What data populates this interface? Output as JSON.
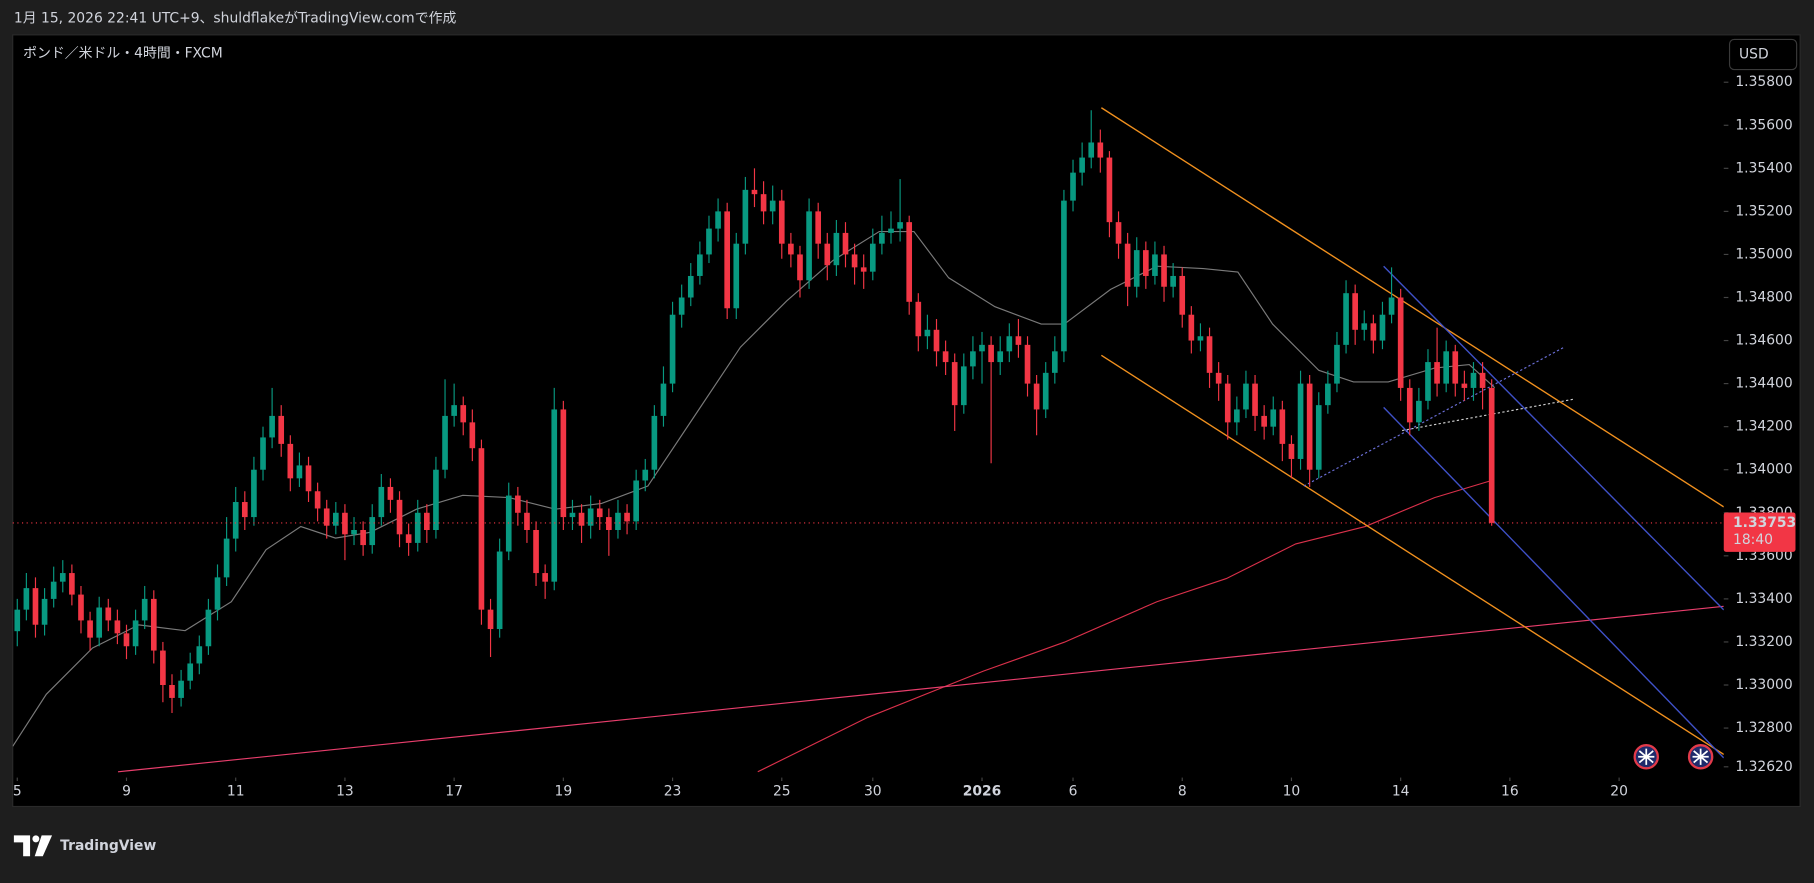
{
  "header": "1月 15, 2026 22:41 UTC+9、shuldflakeがTradingView.comで作成",
  "brand": "TradingView",
  "chart_data": {
    "type": "candlestick",
    "title": "ポンド／米ドル・4時間・FXCM",
    "currency": "USD",
    "up_color": "#089981",
    "down_color": "#f23645",
    "last_price": 1.33753,
    "countdown": "18:40",
    "xlim": [
      -0.5,
      187.5
    ],
    "xticks": [
      {
        "value": 0,
        "label": "5"
      },
      {
        "value": 12,
        "label": "9"
      },
      {
        "value": 24,
        "label": "11"
      },
      {
        "value": 36,
        "label": "13"
      },
      {
        "value": 48,
        "label": "17"
      },
      {
        "value": 60,
        "label": "19"
      },
      {
        "value": 72,
        "label": "23"
      },
      {
        "value": 84,
        "label": "25"
      },
      {
        "value": 94,
        "label": "30"
      },
      {
        "value": 106,
        "label": "2026"
      },
      {
        "value": 116,
        "label": "6"
      },
      {
        "value": 128,
        "label": "8"
      },
      {
        "value": 140,
        "label": "10"
      },
      {
        "value": 152,
        "label": "14"
      },
      {
        "value": 164,
        "label": "16"
      },
      {
        "value": 176,
        "label": "20"
      }
    ],
    "ylim": [
      1.3257,
      1.3602
    ],
    "yticks": [
      {
        "value": 1.358,
        "label": "1.35800"
      },
      {
        "value": 1.356,
        "label": "1.35600"
      },
      {
        "value": 1.354,
        "label": "1.35400"
      },
      {
        "value": 1.352,
        "label": "1.35200"
      },
      {
        "value": 1.35,
        "label": "1.35000"
      },
      {
        "value": 1.348,
        "label": "1.34800"
      },
      {
        "value": 1.346,
        "label": "1.34600"
      },
      {
        "value": 1.344,
        "label": "1.34400"
      },
      {
        "value": 1.342,
        "label": "1.34200"
      },
      {
        "value": 1.34,
        "label": "1.34000"
      },
      {
        "value": 1.338,
        "label": "1.33800"
      },
      {
        "value": 1.336,
        "label": "1.33600"
      },
      {
        "value": 1.334,
        "label": "1.33400"
      },
      {
        "value": 1.332,
        "label": "1.33200"
      },
      {
        "value": 1.33,
        "label": "1.33000"
      },
      {
        "value": 1.328,
        "label": "1.32800"
      },
      {
        "value": 1.3262,
        "label": "1.32620"
      }
    ],
    "ohlc": [
      [
        1.3325,
        1.334,
        1.3318,
        1.3335
      ],
      [
        1.3335,
        1.3352,
        1.333,
        1.3345
      ],
      [
        1.3345,
        1.335,
        1.3322,
        1.3328
      ],
      [
        1.3328,
        1.3345,
        1.3323,
        1.334
      ],
      [
        1.334,
        1.3355,
        1.3336,
        1.3348
      ],
      [
        1.3348,
        1.3358,
        1.3343,
        1.3352
      ],
      [
        1.3352,
        1.3356,
        1.3337,
        1.3342
      ],
      [
        1.3342,
        1.3346,
        1.3324,
        1.333
      ],
      [
        1.333,
        1.3334,
        1.3316,
        1.3322
      ],
      [
        1.3322,
        1.3341,
        1.3318,
        1.3336
      ],
      [
        1.3336,
        1.334,
        1.3325,
        1.333
      ],
      [
        1.333,
        1.3335,
        1.3319,
        1.3324
      ],
      [
        1.3324,
        1.3328,
        1.3312,
        1.3318
      ],
      [
        1.3318,
        1.3335,
        1.3314,
        1.333
      ],
      [
        1.333,
        1.3346,
        1.3326,
        1.334
      ],
      [
        1.334,
        1.3344,
        1.331,
        1.3316
      ],
      [
        1.3316,
        1.332,
        1.3292,
        1.33
      ],
      [
        1.33,
        1.3305,
        1.3287,
        1.3294
      ],
      [
        1.3294,
        1.3307,
        1.329,
        1.3302
      ],
      [
        1.3302,
        1.3315,
        1.3298,
        1.331
      ],
      [
        1.331,
        1.3323,
        1.3305,
        1.3318
      ],
      [
        1.3318,
        1.334,
        1.3314,
        1.3335
      ],
      [
        1.3335,
        1.3356,
        1.333,
        1.335
      ],
      [
        1.335,
        1.3378,
        1.3346,
        1.3368
      ],
      [
        1.3368,
        1.3392,
        1.3362,
        1.3385
      ],
      [
        1.3385,
        1.339,
        1.3372,
        1.3378
      ],
      [
        1.3378,
        1.3406,
        1.3374,
        1.34
      ],
      [
        1.34,
        1.342,
        1.3395,
        1.3415
      ],
      [
        1.3415,
        1.3438,
        1.341,
        1.3425
      ],
      [
        1.3425,
        1.343,
        1.3406,
        1.3412
      ],
      [
        1.3412,
        1.3416,
        1.339,
        1.3396
      ],
      [
        1.3396,
        1.3408,
        1.3392,
        1.3402
      ],
      [
        1.3402,
        1.3406,
        1.3385,
        1.339
      ],
      [
        1.339,
        1.3394,
        1.3376,
        1.3382
      ],
      [
        1.3382,
        1.3386,
        1.3368,
        1.3374
      ],
      [
        1.3374,
        1.3385,
        1.337,
        1.338
      ],
      [
        1.338,
        1.3384,
        1.3358,
        1.337
      ],
      [
        1.337,
        1.3378,
        1.3365,
        1.3372
      ],
      [
        1.3372,
        1.3376,
        1.336,
        1.3365
      ],
      [
        1.3365,
        1.3384,
        1.3361,
        1.3378
      ],
      [
        1.3378,
        1.3398,
        1.3374,
        1.3392
      ],
      [
        1.3392,
        1.3396,
        1.338,
        1.3386
      ],
      [
        1.3386,
        1.339,
        1.3364,
        1.337
      ],
      [
        1.337,
        1.3375,
        1.336,
        1.3366
      ],
      [
        1.3366,
        1.3386,
        1.3362,
        1.338
      ],
      [
        1.338,
        1.3384,
        1.3366,
        1.3372
      ],
      [
        1.3372,
        1.3406,
        1.3368,
        1.34
      ],
      [
        1.34,
        1.3442,
        1.3396,
        1.3425
      ],
      [
        1.3425,
        1.344,
        1.342,
        1.343
      ],
      [
        1.343,
        1.3434,
        1.3416,
        1.3422
      ],
      [
        1.3422,
        1.3428,
        1.3404,
        1.341
      ],
      [
        1.341,
        1.3414,
        1.3328,
        1.3335
      ],
      [
        1.3335,
        1.334,
        1.3313,
        1.3326
      ],
      [
        1.3326,
        1.3368,
        1.3322,
        1.3362
      ],
      [
        1.3362,
        1.3394,
        1.3358,
        1.3388
      ],
      [
        1.3388,
        1.3392,
        1.3374,
        1.338
      ],
      [
        1.338,
        1.3386,
        1.3366,
        1.3372
      ],
      [
        1.3372,
        1.3376,
        1.3346,
        1.3352
      ],
      [
        1.3352,
        1.3356,
        1.334,
        1.3348
      ],
      [
        1.3348,
        1.3438,
        1.3344,
        1.3428
      ],
      [
        1.3428,
        1.3432,
        1.3372,
        1.3378
      ],
      [
        1.3378,
        1.3386,
        1.3372,
        1.338
      ],
      [
        1.338,
        1.3384,
        1.3366,
        1.3374
      ],
      [
        1.3374,
        1.3388,
        1.3368,
        1.3382
      ],
      [
        1.3382,
        1.3386,
        1.3372,
        1.3378
      ],
      [
        1.3378,
        1.3382,
        1.336,
        1.3372
      ],
      [
        1.3372,
        1.3386,
        1.3368,
        1.338
      ],
      [
        1.338,
        1.3384,
        1.337,
        1.3376
      ],
      [
        1.3376,
        1.34,
        1.3372,
        1.3395
      ],
      [
        1.3395,
        1.3405,
        1.339,
        1.34
      ],
      [
        1.34,
        1.343,
        1.3396,
        1.3425
      ],
      [
        1.3425,
        1.3448,
        1.342,
        1.344
      ],
      [
        1.344,
        1.3478,
        1.3436,
        1.3472
      ],
      [
        1.3472,
        1.3486,
        1.3466,
        1.348
      ],
      [
        1.348,
        1.3496,
        1.3476,
        1.349
      ],
      [
        1.349,
        1.3506,
        1.3486,
        1.35
      ],
      [
        1.35,
        1.3518,
        1.3496,
        1.3512
      ],
      [
        1.3512,
        1.3526,
        1.3506,
        1.352
      ],
      [
        1.352,
        1.3524,
        1.347,
        1.3475
      ],
      [
        1.3475,
        1.351,
        1.347,
        1.3505
      ],
      [
        1.3505,
        1.3536,
        1.35,
        1.353
      ],
      [
        1.353,
        1.354,
        1.3522,
        1.3528
      ],
      [
        1.3528,
        1.3534,
        1.3514,
        1.352
      ],
      [
        1.352,
        1.3532,
        1.3514,
        1.3525
      ],
      [
        1.3525,
        1.353,
        1.3498,
        1.3505
      ],
      [
        1.3505,
        1.351,
        1.3494,
        1.35
      ],
      [
        1.35,
        1.3504,
        1.348,
        1.3488
      ],
      [
        1.3488,
        1.3526,
        1.3484,
        1.352
      ],
      [
        1.352,
        1.3524,
        1.3498,
        1.3505
      ],
      [
        1.3505,
        1.351,
        1.3488,
        1.3495
      ],
      [
        1.3495,
        1.3516,
        1.349,
        1.351
      ],
      [
        1.351,
        1.3515,
        1.3494,
        1.35
      ],
      [
        1.35,
        1.3505,
        1.3486,
        1.3494
      ],
      [
        1.3494,
        1.35,
        1.3484,
        1.3492
      ],
      [
        1.3492,
        1.3512,
        1.3488,
        1.3505
      ],
      [
        1.3505,
        1.3518,
        1.35,
        1.351
      ],
      [
        1.351,
        1.352,
        1.3505,
        1.3512
      ],
      [
        1.3512,
        1.3535,
        1.3506,
        1.3515
      ],
      [
        1.3515,
        1.3518,
        1.3472,
        1.3478
      ],
      [
        1.3478,
        1.3482,
        1.3455,
        1.3462
      ],
      [
        1.3462,
        1.3472,
        1.3456,
        1.3465
      ],
      [
        1.3465,
        1.347,
        1.3448,
        1.3455
      ],
      [
        1.3455,
        1.346,
        1.3444,
        1.345
      ],
      [
        1.345,
        1.3454,
        1.3418,
        1.343
      ],
      [
        1.343,
        1.3454,
        1.3426,
        1.3448
      ],
      [
        1.3448,
        1.3462,
        1.3442,
        1.3455
      ],
      [
        1.3455,
        1.3464,
        1.344,
        1.3458
      ],
      [
        1.3458,
        1.3462,
        1.3403,
        1.345
      ],
      [
        1.345,
        1.3462,
        1.3444,
        1.3455
      ],
      [
        1.3455,
        1.3468,
        1.345,
        1.3462
      ],
      [
        1.3462,
        1.347,
        1.3452,
        1.3458
      ],
      [
        1.3458,
        1.3462,
        1.3434,
        1.344
      ],
      [
        1.344,
        1.3444,
        1.3416,
        1.3428
      ],
      [
        1.3428,
        1.345,
        1.3424,
        1.3445
      ],
      [
        1.3445,
        1.3462,
        1.344,
        1.3455
      ],
      [
        1.3455,
        1.353,
        1.345,
        1.3525
      ],
      [
        1.3525,
        1.3544,
        1.352,
        1.3538
      ],
      [
        1.3538,
        1.3552,
        1.3532,
        1.3545
      ],
      [
        1.3545,
        1.3567,
        1.354,
        1.3552
      ],
      [
        1.3552,
        1.3558,
        1.3538,
        1.3545
      ],
      [
        1.3545,
        1.3548,
        1.3508,
        1.3515
      ],
      [
        1.3515,
        1.352,
        1.3498,
        1.3505
      ],
      [
        1.3505,
        1.351,
        1.3476,
        1.3485
      ],
      [
        1.3485,
        1.3508,
        1.348,
        1.3502
      ],
      [
        1.3502,
        1.3506,
        1.3484,
        1.349
      ],
      [
        1.349,
        1.3506,
        1.3486,
        1.35
      ],
      [
        1.35,
        1.3504,
        1.3478,
        1.3485
      ],
      [
        1.3485,
        1.3496,
        1.348,
        1.349
      ],
      [
        1.349,
        1.3494,
        1.3466,
        1.3472
      ],
      [
        1.3472,
        1.3476,
        1.3454,
        1.346
      ],
      [
        1.346,
        1.3468,
        1.3455,
        1.3462
      ],
      [
        1.3462,
        1.3466,
        1.3438,
        1.3445
      ],
      [
        1.3445,
        1.345,
        1.3432,
        1.344
      ],
      [
        1.344,
        1.3444,
        1.3414,
        1.3422
      ],
      [
        1.3422,
        1.3434,
        1.3416,
        1.3428
      ],
      [
        1.3428,
        1.3446,
        1.3424,
        1.344
      ],
      [
        1.344,
        1.3444,
        1.3418,
        1.3425
      ],
      [
        1.3425,
        1.343,
        1.3414,
        1.342
      ],
      [
        1.342,
        1.3434,
        1.3416,
        1.3428
      ],
      [
        1.3428,
        1.3432,
        1.3404,
        1.3412
      ],
      [
        1.3412,
        1.3416,
        1.3396,
        1.3405
      ],
      [
        1.3405,
        1.3446,
        1.34,
        1.344
      ],
      [
        1.344,
        1.3444,
        1.3392,
        1.34
      ],
      [
        1.34,
        1.3436,
        1.3396,
        1.343
      ],
      [
        1.343,
        1.3446,
        1.3426,
        1.344
      ],
      [
        1.344,
        1.3464,
        1.3436,
        1.3458
      ],
      [
        1.3458,
        1.3488,
        1.3454,
        1.3482
      ],
      [
        1.3482,
        1.3486,
        1.3458,
        1.3465
      ],
      [
        1.3465,
        1.3474,
        1.346,
        1.3468
      ],
      [
        1.3468,
        1.3472,
        1.3454,
        1.346
      ],
      [
        1.346,
        1.3478,
        1.3456,
        1.3472
      ],
      [
        1.3472,
        1.3494,
        1.3468,
        1.348
      ],
      [
        1.348,
        1.3484,
        1.3432,
        1.3438
      ],
      [
        1.3438,
        1.3442,
        1.3416,
        1.3422
      ],
      [
        1.3422,
        1.3438,
        1.3418,
        1.3432
      ],
      [
        1.3432,
        1.3456,
        1.3428,
        1.345
      ],
      [
        1.345,
        1.3466,
        1.3434,
        1.344
      ],
      [
        1.344,
        1.346,
        1.3436,
        1.3455
      ],
      [
        1.3455,
        1.3458,
        1.3434,
        1.344
      ],
      [
        1.344,
        1.3446,
        1.3432,
        1.3438
      ],
      [
        1.3438,
        1.345,
        1.3432,
        1.3445
      ],
      [
        1.3445,
        1.345,
        1.3428,
        1.3438
      ],
      [
        1.3438,
        1.3442,
        1.3374,
        1.33753
      ]
    ]
  }
}
